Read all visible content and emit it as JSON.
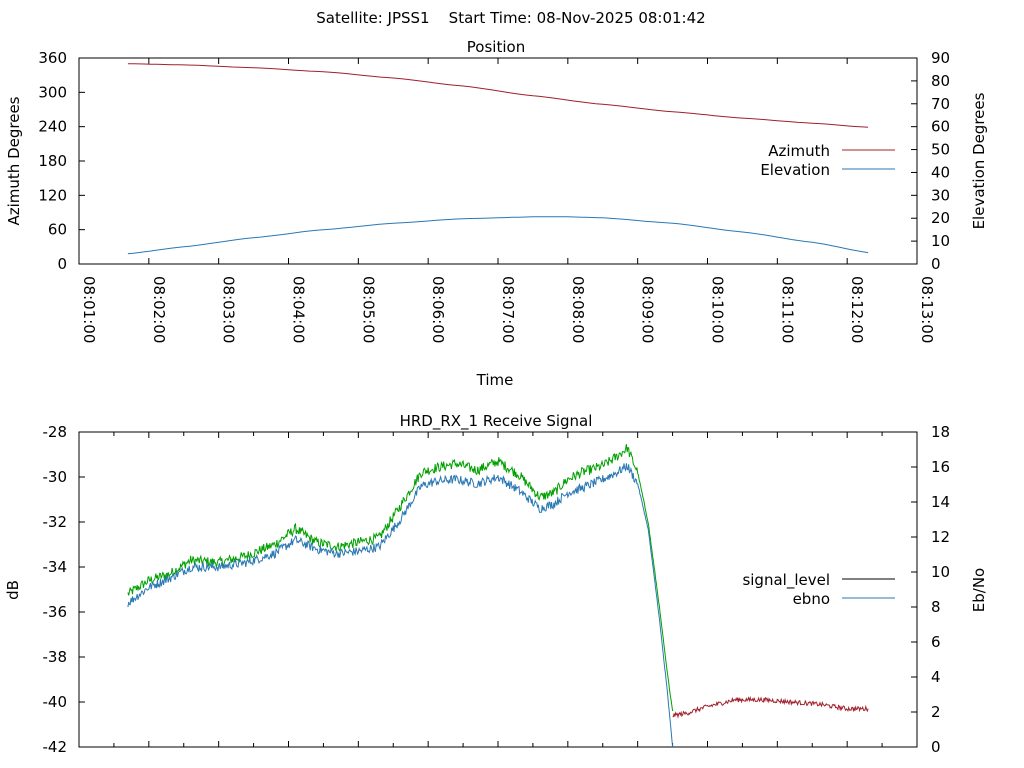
{
  "header": {
    "title": "Satellite: JPSS1    Start Time: 08-Nov-2025 08:01:42"
  },
  "colors": {
    "azimuth": "#a0202a",
    "elevation": "#2a78b4",
    "signal_level": "#000000",
    "ebno": "#2a78b4",
    "green_trace": "#00a000",
    "red_trace": "#a0202a",
    "axes": "#000000",
    "background": "#ffffff"
  },
  "chart_data": [
    {
      "type": "line",
      "title": "Position",
      "xlabel": "Time",
      "ylabel": "Azimuth Degrees",
      "y2label": "Elevation Degrees",
      "xlim_minutes": [
        0,
        12
      ],
      "x_tick_labels": [
        "08:01:00",
        "08:02:00",
        "08:03:00",
        "08:04:00",
        "08:05:00",
        "08:06:00",
        "08:07:00",
        "08:08:00",
        "08:09:00",
        "08:10:00",
        "08:11:00",
        "08:12:00",
        "08:13:00"
      ],
      "ylim": [
        0,
        360
      ],
      "y_ticks": [
        0,
        60,
        120,
        180,
        240,
        300,
        360
      ],
      "y2lim": [
        0,
        90
      ],
      "y2_ticks": [
        0,
        10,
        20,
        30,
        40,
        50,
        60,
        70,
        80,
        90
      ],
      "legend_position": "right",
      "series": [
        {
          "name": "Azimuth",
          "axis": "y",
          "color_key": "azimuth",
          "x_minutes": [
            0.7,
            1.5,
            2.5,
            3.5,
            4.5,
            5.5,
            6.5,
            7.5,
            8.5,
            9.5,
            10.5,
            11.3
          ],
          "values": [
            350,
            348,
            343,
            336,
            325,
            311,
            294,
            279,
            266,
            255,
            246,
            239
          ]
        },
        {
          "name": "Elevation",
          "axis": "y2",
          "color_key": "elevation",
          "x_minutes": [
            0.7,
            1.5,
            2.5,
            3.5,
            4.5,
            5.5,
            6.5,
            7.0,
            7.5,
            8.5,
            9.5,
            10.5,
            11.3
          ],
          "values": [
            4.5,
            7.5,
            11.5,
            15,
            17.8,
            19.8,
            20.6,
            20.6,
            20.2,
            17.8,
            14,
            9.5,
            5
          ]
        }
      ]
    },
    {
      "type": "line",
      "title": "HRD_RX_1 Receive Signal",
      "xlabel": "",
      "ylabel": "dB",
      "y2label": "Eb/No",
      "xlim_minutes": [
        0,
        12
      ],
      "ylim": [
        -42,
        -28
      ],
      "y_ticks": [
        -42,
        -40,
        -38,
        -36,
        -34,
        -32,
        -30,
        -28
      ],
      "y2lim": [
        0,
        18
      ],
      "y2_ticks": [
        0,
        2,
        4,
        6,
        8,
        10,
        12,
        14,
        16,
        18
      ],
      "legend_position": "right",
      "legend": [
        {
          "name": "signal_level",
          "color_key": "signal_level"
        },
        {
          "name": "ebno",
          "color_key": "ebno"
        }
      ],
      "series": [
        {
          "name": "signal_level (green segment)",
          "axis": "y",
          "color_key": "green_trace",
          "noise": 0.22,
          "x_minutes": [
            0.7,
            1.0,
            1.3,
            1.6,
            2.0,
            2.4,
            2.8,
            3.1,
            3.4,
            3.7,
            4.0,
            4.3,
            4.6,
            4.9,
            5.1,
            5.4,
            5.7,
            6.0,
            6.3,
            6.6,
            6.8,
            7.0,
            7.2,
            7.5,
            7.7,
            7.85,
            8.0,
            8.15,
            8.3,
            8.42,
            8.5
          ],
          "values": [
            -35.2,
            -34.6,
            -34.3,
            -33.7,
            -33.8,
            -33.5,
            -33.0,
            -32.3,
            -32.9,
            -33.1,
            -32.9,
            -32.7,
            -31.3,
            -29.8,
            -29.6,
            -29.4,
            -29.7,
            -29.3,
            -29.9,
            -30.9,
            -30.7,
            -30.1,
            -29.8,
            -29.5,
            -29.1,
            -28.7,
            -29.8,
            -32.0,
            -35.5,
            -38.6,
            -40.4
          ]
        },
        {
          "name": "ebno",
          "axis": "y",
          "color_key": "ebno",
          "noise": 0.2,
          "x_minutes": [
            0.7,
            1.0,
            1.3,
            1.6,
            2.0,
            2.4,
            2.8,
            3.1,
            3.4,
            3.7,
            4.0,
            4.3,
            4.6,
            4.9,
            5.1,
            5.4,
            5.7,
            6.0,
            6.3,
            6.6,
            6.8,
            7.0,
            7.2,
            7.5,
            7.7,
            7.85,
            8.0,
            8.15,
            8.3,
            8.42,
            8.5
          ],
          "values": [
            -35.6,
            -34.9,
            -34.5,
            -34.0,
            -34.0,
            -33.8,
            -33.4,
            -32.8,
            -33.2,
            -33.4,
            -33.3,
            -33.1,
            -31.9,
            -30.4,
            -30.2,
            -30.1,
            -30.3,
            -30.0,
            -30.6,
            -31.4,
            -31.2,
            -30.7,
            -30.5,
            -30.1,
            -29.8,
            -29.5,
            -30.3,
            -32.3,
            -36.0,
            -39.4,
            -42.0
          ]
        },
        {
          "name": "signal_level (after LOS)",
          "axis": "y",
          "color_key": "red_trace",
          "noise": 0.1,
          "x_minutes": [
            8.5,
            8.7,
            9.0,
            9.4,
            9.8,
            10.2,
            10.6,
            11.0,
            11.3
          ],
          "values": [
            -40.6,
            -40.5,
            -40.2,
            -39.9,
            -39.9,
            -40.0,
            -40.1,
            -40.3,
            -40.3
          ]
        }
      ]
    }
  ]
}
